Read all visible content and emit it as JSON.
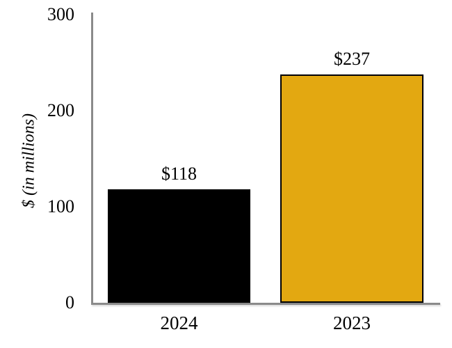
{
  "chart_data": {
    "type": "bar",
    "title": "",
    "xlabel": "",
    "ylabel": "$ (in millions)",
    "categories": [
      "2024",
      "2023"
    ],
    "values": [
      118,
      237
    ],
    "value_labels": [
      "$118",
      "$237"
    ],
    "bar_colors": [
      "#000000",
      "#e3a811"
    ],
    "bar_border_color": "#000000",
    "ylim": [
      0,
      300
    ],
    "yticks": [
      0,
      100,
      200,
      300
    ],
    "ytick_labels": [
      "0",
      "100",
      "200",
      "300"
    ],
    "grid": false,
    "legend_position": "none",
    "axis_color": "#8a8a8a"
  }
}
